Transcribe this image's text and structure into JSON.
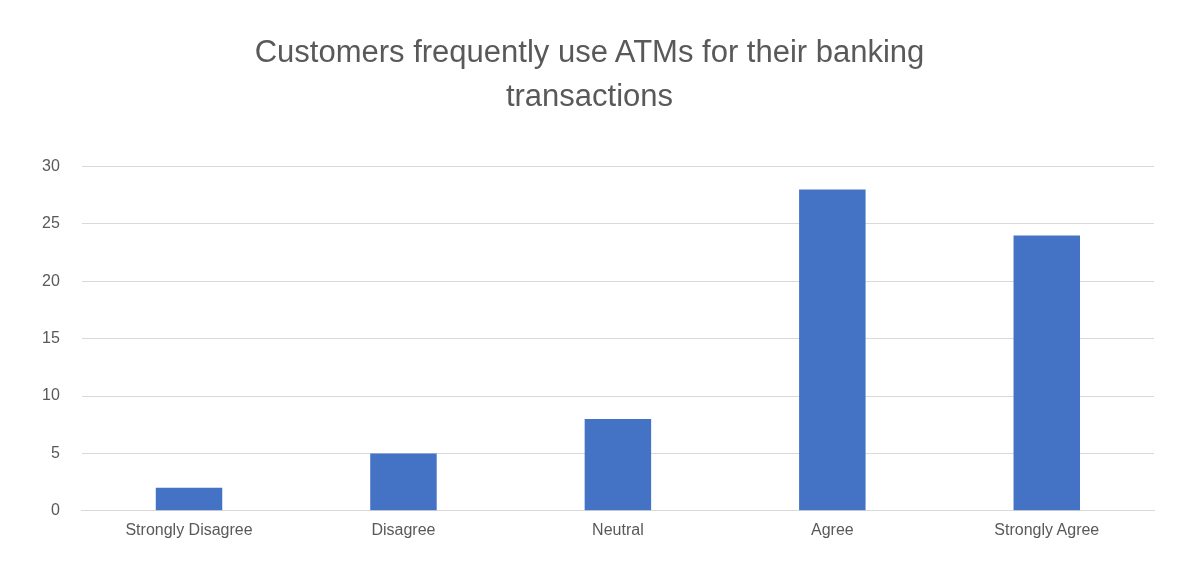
{
  "chart_data": {
    "type": "bar",
    "title": "Customers frequently use ATMs for their banking transactions",
    "categories": [
      "Strongly Disagree",
      "Disagree",
      "Neutral",
      "Agree",
      "Strongly Agree"
    ],
    "values": [
      2,
      5,
      8,
      28,
      24
    ],
    "color": "#4472c4",
    "ylim": [
      0,
      30
    ],
    "yticks": [
      0,
      5,
      10,
      15,
      20,
      25,
      30
    ],
    "grid": "y"
  }
}
